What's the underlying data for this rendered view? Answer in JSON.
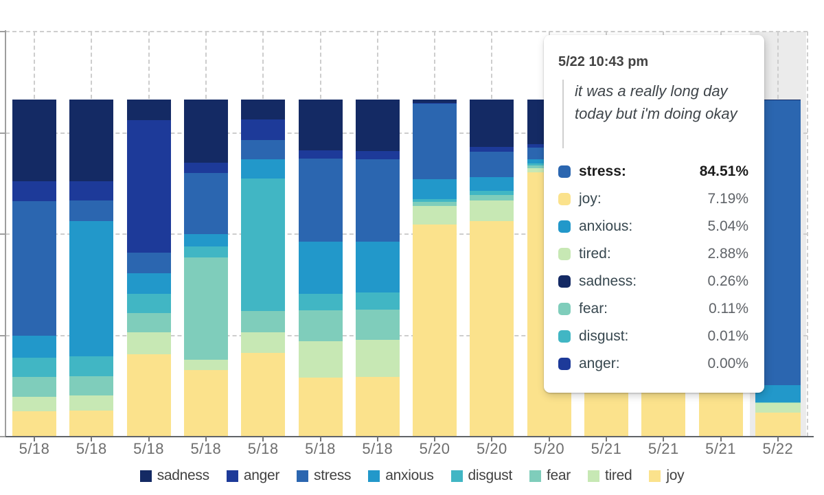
{
  "chart_data": {
    "type": "stacked-bar",
    "title": "",
    "unit": "percent",
    "categories": [
      "5/18",
      "5/18",
      "5/18",
      "5/18",
      "5/18",
      "5/18",
      "5/18",
      "5/20",
      "5/20",
      "5/20",
      "5/21",
      "5/21",
      "5/21",
      "5/22"
    ],
    "stack_order_top_to_bottom": [
      "sadness",
      "anger",
      "stress",
      "anxious",
      "disgust",
      "fear",
      "tired",
      "joy"
    ],
    "series": [
      {
        "name": "sadness",
        "color": "#142a64",
        "values": [
          24.2,
          24.2,
          6.1,
          18.7,
          5.9,
          15.0,
          15.2,
          1.0,
          14.0,
          13.2,
          2.0,
          3.0,
          2.5,
          0.26
        ]
      },
      {
        "name": "anger",
        "color": "#1d3a99",
        "values": [
          5.9,
          5.7,
          39.4,
          3.0,
          6.1,
          2.6,
          2.5,
          0.3,
          1.4,
          1.0,
          0.5,
          0.5,
          0.5,
          0.0
        ]
      },
      {
        "name": "stress",
        "color": "#2b66b0",
        "values": [
          40.0,
          6.1,
          6.1,
          18.3,
          5.7,
          24.6,
          24.4,
          22.4,
          7.7,
          3.5,
          5.0,
          6.0,
          4.0,
          84.51
        ]
      },
      {
        "name": "anxious",
        "color": "#2298ca",
        "values": [
          6.5,
          40.2,
          6.1,
          3.5,
          5.7,
          15.4,
          15.2,
          5.9,
          3.9,
          1.2,
          2.0,
          2.5,
          2.0,
          5.04
        ]
      },
      {
        "name": "disgust",
        "color": "#41b6c4",
        "values": [
          5.7,
          5.9,
          5.7,
          3.3,
          39.4,
          4.9,
          5.0,
          0.7,
          1.4,
          0.6,
          0.5,
          0.5,
          0.5,
          0.01
        ]
      },
      {
        "name": "fear",
        "color": "#7fcdbb",
        "values": [
          5.9,
          5.7,
          5.7,
          30.5,
          6.3,
          9.1,
          9.0,
          1.2,
          1.6,
          0.9,
          1.0,
          1.0,
          1.5,
          0.11
        ]
      },
      {
        "name": "tired",
        "color": "#c7e8b4",
        "values": [
          4.3,
          4.5,
          6.5,
          3.0,
          6.1,
          10.8,
          11.0,
          5.5,
          6.1,
          1.1,
          4.0,
          3.5,
          4.0,
          2.88
        ]
      },
      {
        "name": "joy",
        "color": "#fbe28c",
        "values": [
          7.5,
          7.7,
          24.4,
          19.7,
          24.8,
          17.6,
          17.7,
          63.0,
          63.9,
          78.5,
          85.0,
          83.0,
          85.0,
          7.19
        ]
      }
    ],
    "highlighted_bar_index": 13,
    "y_axis": {
      "visible_labels": [],
      "grid": "dashed",
      "gridline_count": 4
    },
    "legend_position": "bottom",
    "legend_items": [
      "sadness",
      "anger",
      "stress",
      "anxious",
      "disgust",
      "fear",
      "tired",
      "joy"
    ]
  },
  "tooltip": {
    "timestamp": "5/22 10:43 pm",
    "note": "it was a really long day today but i'm doing okay",
    "rows": [
      {
        "label": "stress:",
        "value": "84.51%",
        "color": "#2b66b0",
        "bold": true
      },
      {
        "label": "joy:",
        "value": "7.19%",
        "color": "#fbe28c",
        "bold": false
      },
      {
        "label": "anxious:",
        "value": "5.04%",
        "color": "#2298ca",
        "bold": false
      },
      {
        "label": "tired:",
        "value": "2.88%",
        "color": "#c7e8b4",
        "bold": false
      },
      {
        "label": "sadness:",
        "value": "0.26%",
        "color": "#142a64",
        "bold": false
      },
      {
        "label": "fear:",
        "value": "0.11%",
        "color": "#7fcdbb",
        "bold": false
      },
      {
        "label": "disgust:",
        "value": "0.01%",
        "color": "#41b6c4",
        "bold": false
      },
      {
        "label": "anger:",
        "value": "0.00%",
        "color": "#1d3a99",
        "bold": false
      }
    ]
  }
}
